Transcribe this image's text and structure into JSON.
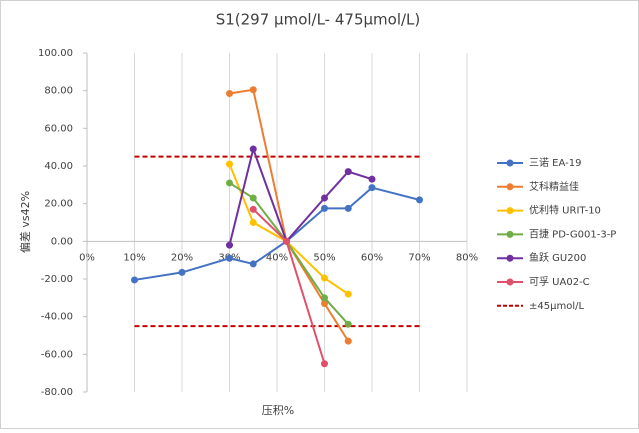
{
  "chart_data": {
    "type": "line",
    "title": "S1(297 μmol/L- 475μmol/L)",
    "x_label": "压积%",
    "y_label": "偏差 vs42%",
    "xlim": [
      0,
      80
    ],
    "xticks": [
      {
        "value": 0,
        "label": "0%"
      },
      {
        "value": 10,
        "label": "10%"
      },
      {
        "value": 20,
        "label": "20%"
      },
      {
        "value": 30,
        "label": "30%"
      },
      {
        "value": 40,
        "label": "40%"
      },
      {
        "value": 50,
        "label": "50%"
      },
      {
        "value": 60,
        "label": "60%"
      },
      {
        "value": 70,
        "label": "70%"
      },
      {
        "value": 80,
        "label": "80%"
      }
    ],
    "ylim": [
      -80,
      100
    ],
    "yticks": [
      {
        "value": -80,
        "label": "-80.00"
      },
      {
        "value": -60,
        "label": "-60.00"
      },
      {
        "value": -40,
        "label": "-40.00"
      },
      {
        "value": -20,
        "label": "-20.00"
      },
      {
        "value": 0,
        "label": "0.00"
      },
      {
        "value": 20,
        "label": "20.00"
      },
      {
        "value": 40,
        "label": "40.00"
      },
      {
        "value": 60,
        "label": "60.00"
      },
      {
        "value": 80,
        "label": "80.00"
      },
      {
        "value": 100,
        "label": "100.00"
      }
    ],
    "grid": true,
    "legend": "right",
    "series": [
      {
        "name": "三诺 EA-19",
        "color": "#4472c4",
        "x": [
          10,
          20,
          30,
          35,
          42,
          50,
          55,
          60,
          70
        ],
        "values": [
          -20.5,
          -16.5,
          -9,
          -12,
          0,
          17.5,
          17.5,
          28.5,
          22
        ]
      },
      {
        "name": "艾科精益佳",
        "color": "#ed7d31",
        "x": [
          30,
          35,
          42,
          50,
          55
        ],
        "values": [
          78.5,
          80.5,
          0,
          -33,
          -53
        ]
      },
      {
        "name": "优利特 URIT-10",
        "color": "#ffc000",
        "x": [
          30,
          35,
          42,
          50,
          55
        ],
        "values": [
          41,
          10,
          0,
          -19.5,
          -28
        ]
      },
      {
        "name": "百捷 PD-G001-3-P",
        "color": "#70ad47",
        "x": [
          30,
          35,
          42,
          50,
          55
        ],
        "values": [
          31,
          23,
          0,
          -30,
          -44
        ]
      },
      {
        "name": "鱼跃 GU200",
        "color": "#7030a0",
        "x": [
          30,
          35,
          42,
          50,
          55,
          60
        ],
        "values": [
          -2,
          49,
          0,
          23,
          37,
          33
        ]
      },
      {
        "name": "可孚 UA02-C",
        "color": "#e0506a",
        "x": [
          35,
          42,
          50
        ],
        "values": [
          17,
          0,
          -65
        ]
      }
    ],
    "reference_lines": {
      "name": "±45μmol/L",
      "color": "#c00000",
      "x": [
        10,
        70
      ],
      "values": [
        45,
        -45
      ]
    }
  }
}
